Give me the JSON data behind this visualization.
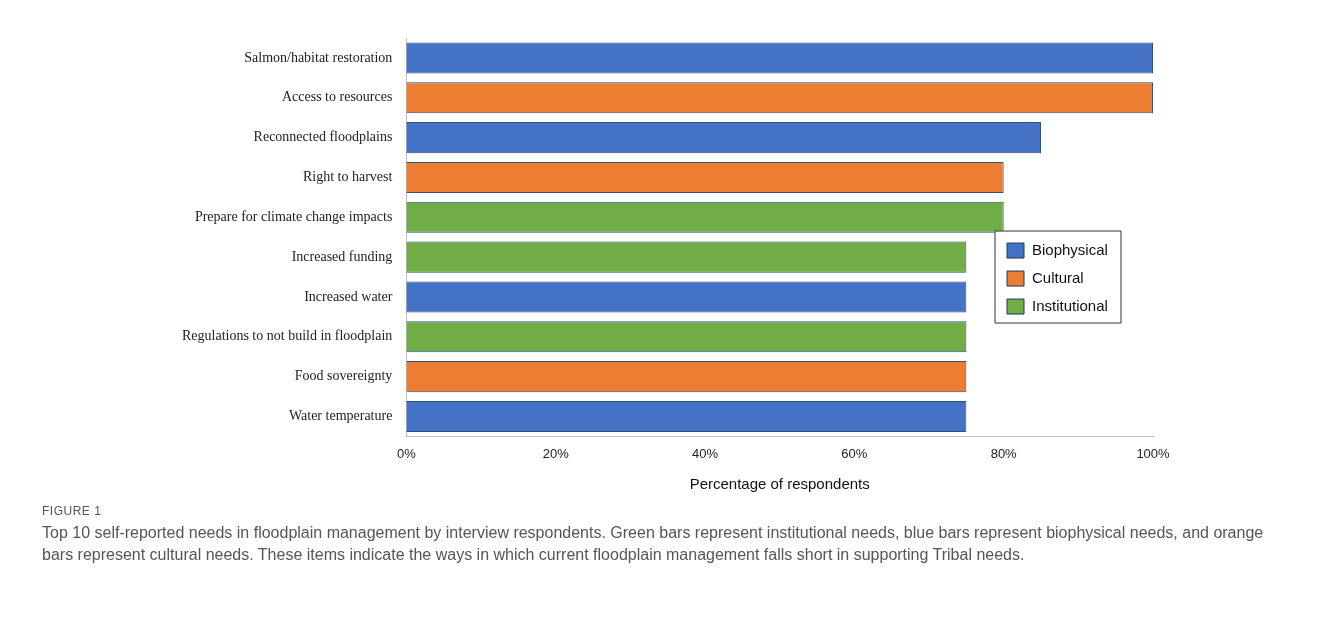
{
  "chart_data": {
    "type": "bar",
    "orientation": "horizontal",
    "stacked": true,
    "categories": [
      "Salmon/habitat restoration",
      "Access to resources",
      "Reconnected floodplains",
      "Right to harvest",
      "Prepare for climate change impacts",
      "Increased funding",
      "Increased water",
      "Regulations to not build in floodplain",
      "Food sovereignty",
      "Water temperature"
    ],
    "series": [
      {
        "name": "Biophysical",
        "color": "#4472c4",
        "values": [
          100,
          null,
          85,
          null,
          null,
          null,
          75,
          null,
          null,
          75
        ]
      },
      {
        "name": "Cultural",
        "color": "#ed7d31",
        "values": [
          null,
          100,
          null,
          80,
          null,
          null,
          null,
          null,
          75,
          null
        ]
      },
      {
        "name": "Institutional",
        "color": "#70ad47",
        "values": [
          null,
          null,
          null,
          null,
          80,
          75,
          null,
          75,
          null,
          null
        ]
      }
    ],
    "xlabel": "Percentage of respondents",
    "xlim": [
      0,
      100
    ],
    "xticks": [
      {
        "value": 0,
        "label": "0%"
      },
      {
        "value": 20,
        "label": "20%"
      },
      {
        "value": 40,
        "label": "40%"
      },
      {
        "value": 60,
        "label": "60%"
      },
      {
        "value": 80,
        "label": "80%"
      },
      {
        "value": 100,
        "label": "100%"
      }
    ],
    "grid": false,
    "legend": "right",
    "annotations": [
      "FIGURE 1",
      "Top 10 self-reported needs in floodplain management by interview respondents. Green bars represent institutional needs, blue bars represent biophysical needs, and orange bars represent cultural needs. These items indicate the ways in which current floodplain management falls short in supporting Tribal needs."
    ]
  }
}
